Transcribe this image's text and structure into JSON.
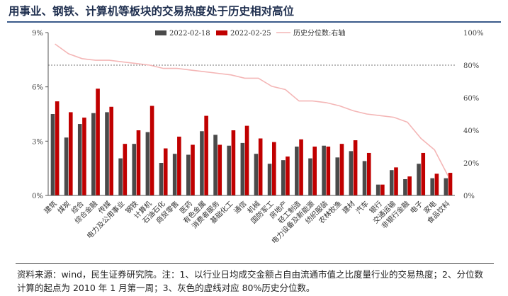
{
  "header": {
    "title": "用事业、钢铁、计算机等板块的交易热度处于历史相对高位"
  },
  "footer": {
    "source": "资料来源：wind，民生证券研究院。注：1、以行业日均成交金额占自由流通市值之比度量行业的交易热度；2、分位数计算的起点为 2010 年 1 月第一周；3、灰色的虚线对应 80%历史分位数。"
  },
  "chart_data": {
    "type": "bar",
    "categories": [
      "建筑",
      "煤炭",
      "综合",
      "综合金融",
      "传媒",
      "电力及公用事业",
      "钢铁",
      "计算机",
      "石油石化",
      "商贸零售",
      "医药",
      "有色金属",
      "消费者服务",
      "基础化工",
      "通信",
      "机械",
      "国防军工",
      "房地产",
      "轻工制造",
      "电力设备及新能源",
      "纺织服装",
      "农林牧渔",
      "建材",
      "汽车",
      "银行",
      "交通运输",
      "非银行金融",
      "电子",
      "家电",
      "食品饮料"
    ],
    "series": [
      {
        "name": "2022-02-18",
        "axis": "left",
        "color": "#4a4a4a",
        "values": [
          4.5,
          3.2,
          3.95,
          4.55,
          4.6,
          2.05,
          2.85,
          3.5,
          1.8,
          2.3,
          2.25,
          3.55,
          3.35,
          2.75,
          2.9,
          2.3,
          1.75,
          1.95,
          2.7,
          2.05,
          2.75,
          2.1,
          2.45,
          1.9,
          0.6,
          1.4,
          0.9,
          1.75,
          0.95,
          0.95
        ]
      },
      {
        "name": "2022-02-25",
        "axis": "left",
        "color": "#c00000",
        "values": [
          5.2,
          4.6,
          4.3,
          5.9,
          4.9,
          2.85,
          3.6,
          4.95,
          2.6,
          3.25,
          2.8,
          4.4,
          2.8,
          3.6,
          3.85,
          3.15,
          2.95,
          2.15,
          3.1,
          2.7,
          2.7,
          2.85,
          3.05,
          2.35,
          0.6,
          1.55,
          1.05,
          2.35,
          1.2,
          1.25
        ]
      },
      {
        "name": "历史分位数:右轴",
        "axis": "right",
        "type": "line",
        "color": "#f4b6b6",
        "values": [
          93,
          87,
          84,
          83,
          83,
          82,
          81,
          80,
          78,
          78,
          77,
          76,
          75,
          74,
          72,
          72,
          67,
          65,
          58,
          58,
          57,
          55,
          52,
          50,
          49,
          48,
          45,
          35,
          28,
          12
        ]
      }
    ],
    "left_ticks": [
      "0%",
      "3%",
      "6%",
      "9%"
    ],
    "right_ticks": [
      "0%",
      "20%",
      "40%",
      "60%",
      "80%",
      "100%"
    ],
    "ylim_left": [
      0,
      9
    ],
    "ylim_right": [
      0,
      100
    ],
    "reference_line": 80,
    "legend_position": "top-right"
  },
  "colors": {
    "title": "#1f2f4f",
    "bar_a": "#4a4a4a",
    "bar_b": "#c00000",
    "line": "#f4b6b6",
    "reference": "#888888"
  }
}
